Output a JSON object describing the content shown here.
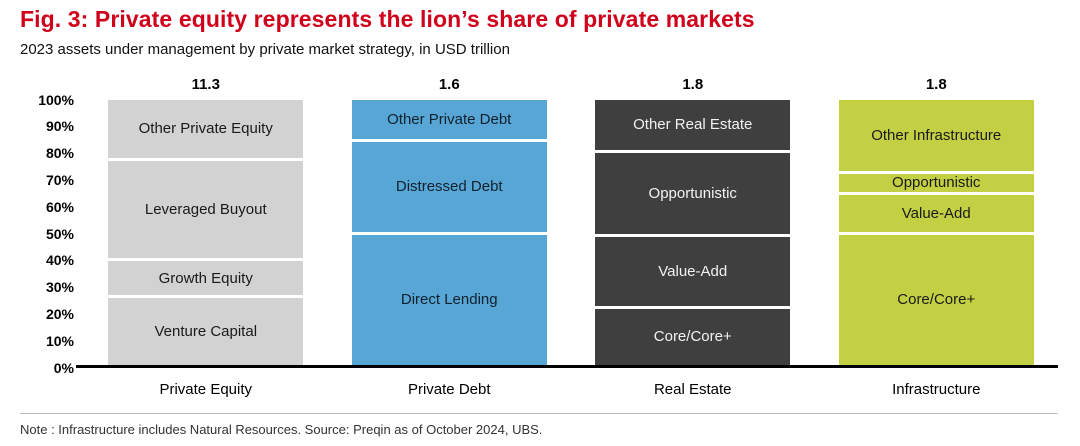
{
  "colors": {
    "title_red": "#d0021b",
    "axis_black": "#000000",
    "divider_white": "#ffffff",
    "note_gray": "#333333"
  },
  "chart_data": {
    "type": "bar",
    "subtype": "stacked_100_percent_column",
    "title": "Fig. 3: Private equity represents the lion’s share of private markets",
    "subtitle": "2023 assets under management by private market strategy, in USD trillion",
    "note": "Note : Infrastructure includes Natural Resources. Source: Preqin as of October 2024, UBS.",
    "xlabel": "",
    "ylabel": "",
    "ylim": [
      0,
      100
    ],
    "grid": false,
    "legend": false,
    "y_ticks": [
      "100%",
      "90%",
      "80%",
      "70%",
      "60%",
      "50%",
      "40%",
      "30%",
      "20%",
      "10%",
      "0%"
    ],
    "categories": [
      "Private Equity",
      "Private Debt",
      "Real Estate",
      "Infrastructure"
    ],
    "totals_usd_trillion": [
      11.3,
      1.6,
      1.8,
      1.8
    ],
    "bars": [
      {
        "category": "Private Equity",
        "total_label": "11.3",
        "color": "#d2d2d2",
        "text_color": "#1a1a1a",
        "segments_bottom_to_top": [
          {
            "label": "Venture Capital",
            "percent": 25
          },
          {
            "label": "Growth Equity",
            "percent": 14
          },
          {
            "label": "Leveraged Buyout",
            "percent": 38
          },
          {
            "label": "Other Private Equity",
            "percent": 23
          }
        ]
      },
      {
        "category": "Private Debt",
        "total_label": "1.6",
        "color": "#58a6d5",
        "text_color": "#10212e",
        "segments_bottom_to_top": [
          {
            "label": "Direct Lending",
            "percent": 49
          },
          {
            "label": "Distressed Debt",
            "percent": 35
          },
          {
            "label": "Other Private Debt",
            "percent": 16
          }
        ]
      },
      {
        "category": "Real Estate",
        "total_label": "1.8",
        "color": "#3f3f3f",
        "text_color": "#f2f2f2",
        "segments_bottom_to_top": [
          {
            "label": "Core/Core+",
            "percent": 21
          },
          {
            "label": "Value-Add",
            "percent": 27
          },
          {
            "label": "Opportunistic",
            "percent": 32
          },
          {
            "label": "Other Real Estate",
            "percent": 20
          }
        ]
      },
      {
        "category": "Infrastructure",
        "total_label": "1.8",
        "color": "#c3d043",
        "text_color": "#1a1a1a",
        "segments_bottom_to_top": [
          {
            "label": "Core/Core+",
            "percent": 49
          },
          {
            "label": "Value-Add",
            "percent": 15
          },
          {
            "label": "Opportunistic",
            "percent": 8
          },
          {
            "label": "Other Infrastructure",
            "percent": 28
          }
        ]
      }
    ]
  }
}
